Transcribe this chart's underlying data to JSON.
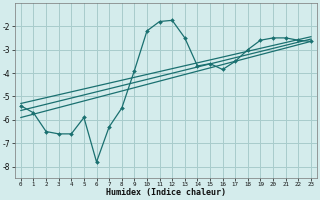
{
  "xlabel": "Humidex (Indice chaleur)",
  "bg_color": "#d4ecec",
  "grid_color": "#a8cccc",
  "line_color": "#1a7070",
  "xlim": [
    -0.5,
    23.5
  ],
  "ylim": [
    -8.5,
    -1.0
  ],
  "yticks": [
    -8,
    -7,
    -6,
    -5,
    -4,
    -3,
    -2
  ],
  "xticks": [
    0,
    1,
    2,
    3,
    4,
    5,
    6,
    7,
    8,
    9,
    10,
    11,
    12,
    13,
    14,
    15,
    16,
    17,
    18,
    19,
    20,
    21,
    22,
    23
  ],
  "jagged_x": [
    0,
    1,
    2,
    3,
    4,
    5,
    6,
    7,
    8,
    9,
    10,
    11,
    12,
    13,
    14,
    15,
    16,
    17,
    18,
    19,
    20,
    21,
    22,
    23
  ],
  "jagged_y": [
    -5.4,
    -5.7,
    -6.5,
    -6.6,
    -6.6,
    -5.9,
    -7.8,
    -6.3,
    -5.5,
    -3.9,
    -2.2,
    -1.8,
    -1.75,
    -2.5,
    -3.7,
    -3.6,
    -3.85,
    -3.5,
    -3.0,
    -2.6,
    -2.5,
    -2.5,
    -2.6,
    -2.65
  ],
  "line1_x": [
    0,
    23
  ],
  "line1_y": [
    -5.6,
    -2.55
  ],
  "line2_x": [
    0,
    23
  ],
  "line2_y": [
    -5.9,
    -2.65
  ],
  "line3_x": [
    0,
    23
  ],
  "line3_y": [
    -5.3,
    -2.45
  ]
}
